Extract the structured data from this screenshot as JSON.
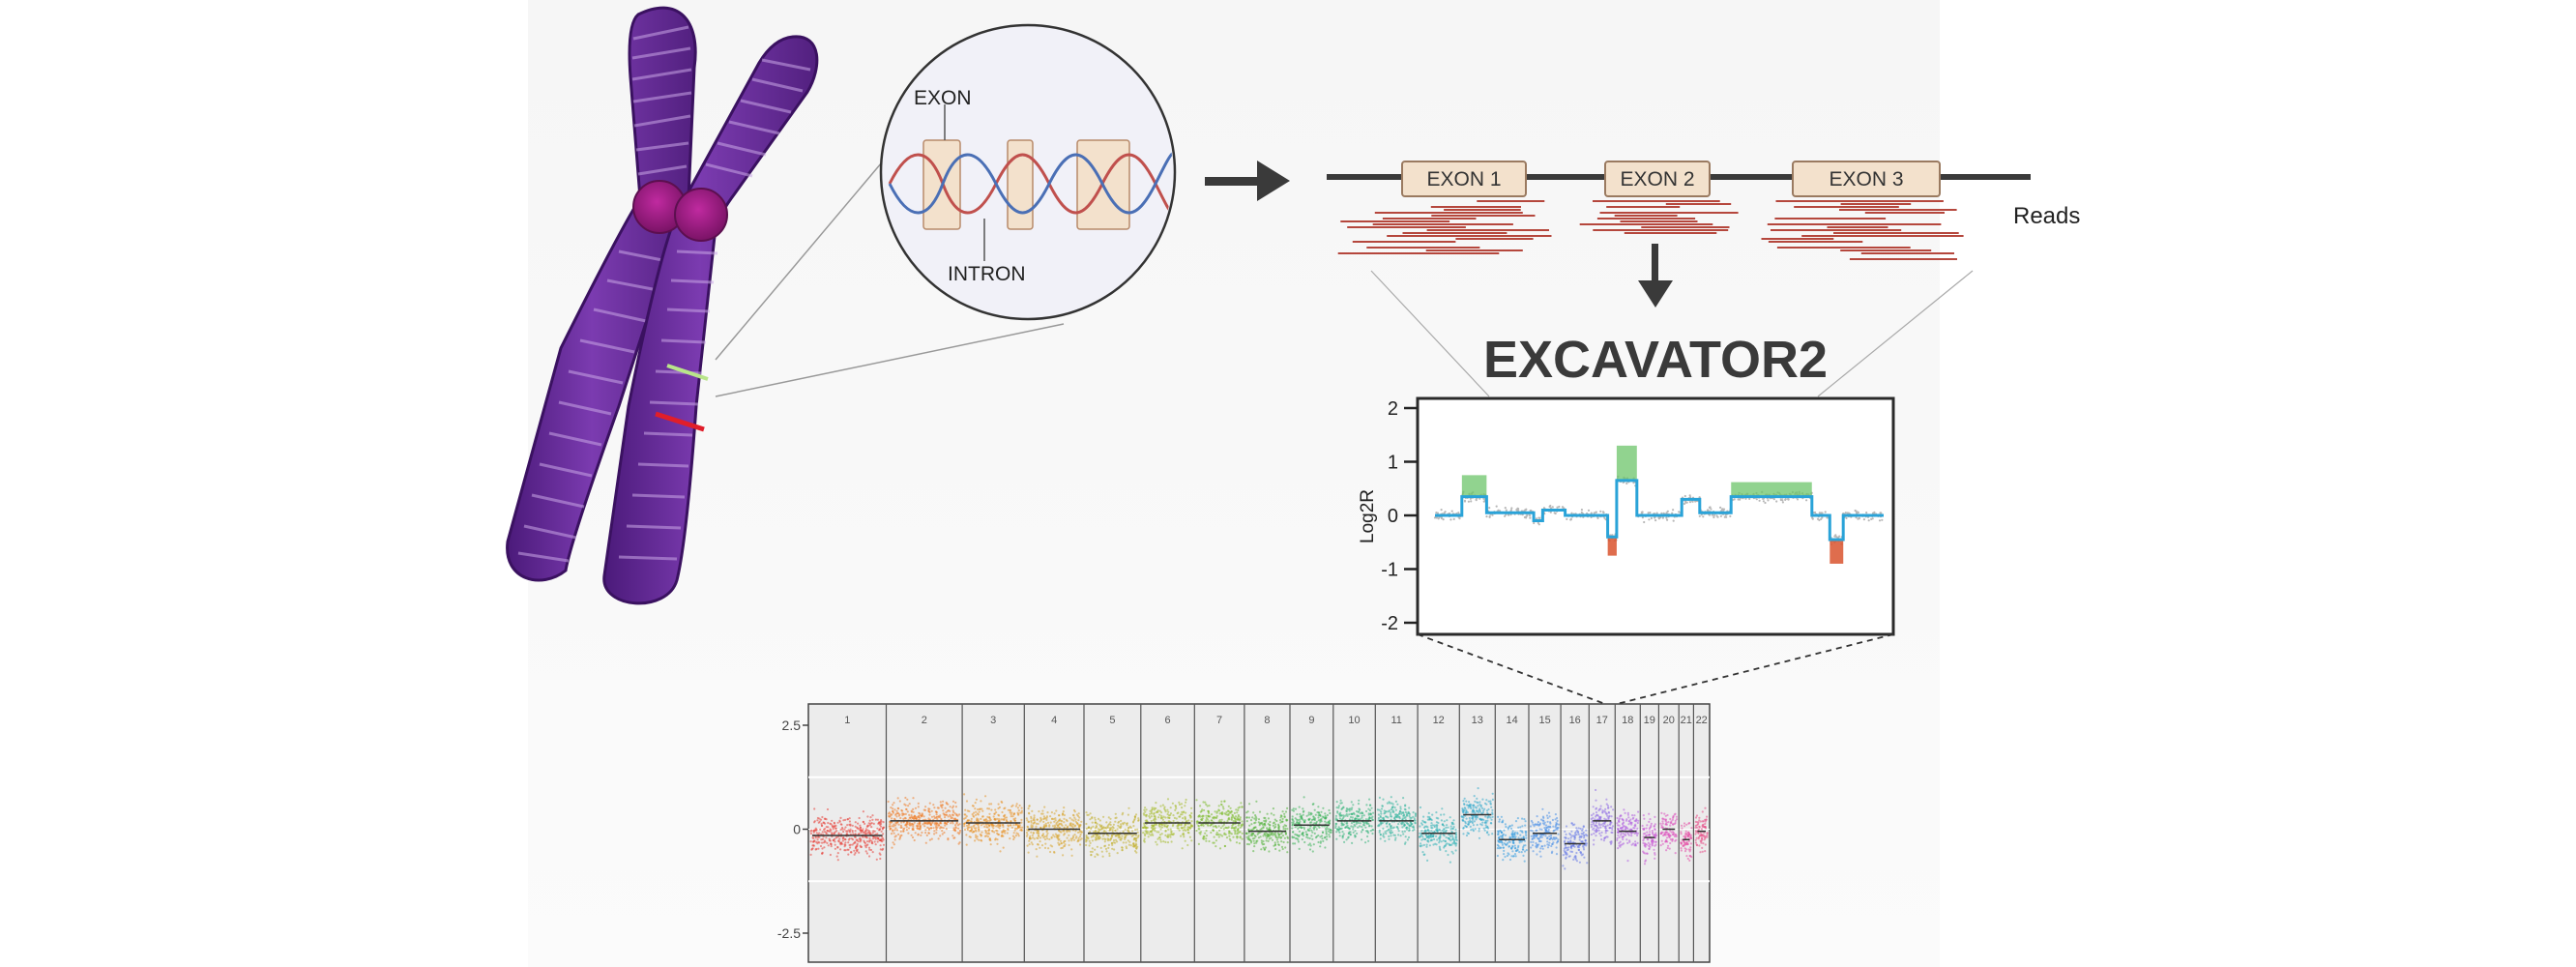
{
  "zoom_labels": {
    "exon": "EXON",
    "intron": "INTRON"
  },
  "exons": [
    "EXON 1",
    "EXON 2",
    "EXON 3"
  ],
  "reads_label": "Reads",
  "tool_title": "EXCAVATOR2",
  "colors": {
    "chromosome": "#6a2a9c",
    "centromere": "#9b1f86",
    "exon_fill": "#f3e1cc",
    "read": "#b5473d",
    "gain": "#6cc46a",
    "loss": "#d9542e",
    "segment": "#2aa3d8"
  },
  "chart_data": [
    {
      "type": "line",
      "ylabel": "Log2R",
      "ylim": [
        -2,
        2
      ],
      "yticks": [
        2,
        1,
        0,
        -1,
        -2
      ],
      "segments": [
        {
          "x0": 0.0,
          "x1": 0.06,
          "y": 0.0
        },
        {
          "x0": 0.06,
          "x1": 0.115,
          "y": 0.35
        },
        {
          "x0": 0.115,
          "x1": 0.22,
          "y": 0.05
        },
        {
          "x0": 0.22,
          "x1": 0.24,
          "y": -0.1
        },
        {
          "x0": 0.24,
          "x1": 0.29,
          "y": 0.1
        },
        {
          "x0": 0.29,
          "x1": 0.385,
          "y": 0.0
        },
        {
          "x0": 0.385,
          "x1": 0.405,
          "y": -0.4
        },
        {
          "x0": 0.405,
          "x1": 0.45,
          "y": 0.65
        },
        {
          "x0": 0.45,
          "x1": 0.55,
          "y": 0.0
        },
        {
          "x0": 0.55,
          "x1": 0.59,
          "y": 0.3
        },
        {
          "x0": 0.59,
          "x1": 0.66,
          "y": 0.05
        },
        {
          "x0": 0.66,
          "x1": 0.84,
          "y": 0.35
        },
        {
          "x0": 0.84,
          "x1": 0.88,
          "y": 0.0
        },
        {
          "x0": 0.88,
          "x1": 0.91,
          "y": -0.45
        },
        {
          "x0": 0.91,
          "x1": 1.0,
          "y": 0.0
        }
      ],
      "gains": [
        {
          "x0": 0.06,
          "x1": 0.115,
          "y": 0.75
        },
        {
          "x0": 0.405,
          "x1": 0.45,
          "y": 1.3
        },
        {
          "x0": 0.66,
          "x1": 0.84,
          "y": 0.62
        }
      ],
      "losses": [
        {
          "x0": 0.385,
          "x1": 0.405,
          "y": -0.75
        },
        {
          "x0": 0.88,
          "x1": 0.91,
          "y": -0.9
        }
      ]
    },
    {
      "type": "scatter",
      "ylim": [
        -2.5,
        2.5
      ],
      "yticks": [
        2.5,
        0,
        -2.5
      ],
      "chromosomes": [
        "1",
        "2",
        "3",
        "4",
        "5",
        "6",
        "7",
        "8",
        "9",
        "10",
        "11",
        "12",
        "13",
        "14",
        "15",
        "16",
        "17",
        "18",
        "19",
        "20",
        "21",
        "22"
      ],
      "widths": [
        248,
        242,
        198,
        190,
        181,
        171,
        159,
        145,
        138,
        134,
        135,
        133,
        114,
        107,
        102,
        90,
        83,
        80,
        59,
        64,
        47,
        51
      ],
      "segment_levels": [
        -0.15,
        0.2,
        0.15,
        0.0,
        -0.1,
        0.15,
        0.15,
        -0.05,
        0.1,
        0.2,
        0.2,
        -0.1,
        0.35,
        -0.25,
        -0.1,
        -0.35,
        0.2,
        -0.05,
        -0.2,
        0.0,
        -0.25,
        -0.05
      ],
      "colors": [
        "#e8413a",
        "#ee7d2a",
        "#e7942a",
        "#d8a531",
        "#c2b032",
        "#a6bb2e",
        "#7dbb2e",
        "#52b33a",
        "#3cb35a",
        "#36b47c",
        "#33b49c",
        "#33b2b6",
        "#33aacc",
        "#3a9ee0",
        "#4a8fe8",
        "#6b7ee8",
        "#9270e6",
        "#b05fe0",
        "#c957d4",
        "#dc52be",
        "#e64fa5",
        "#e84a86"
      ]
    }
  ]
}
